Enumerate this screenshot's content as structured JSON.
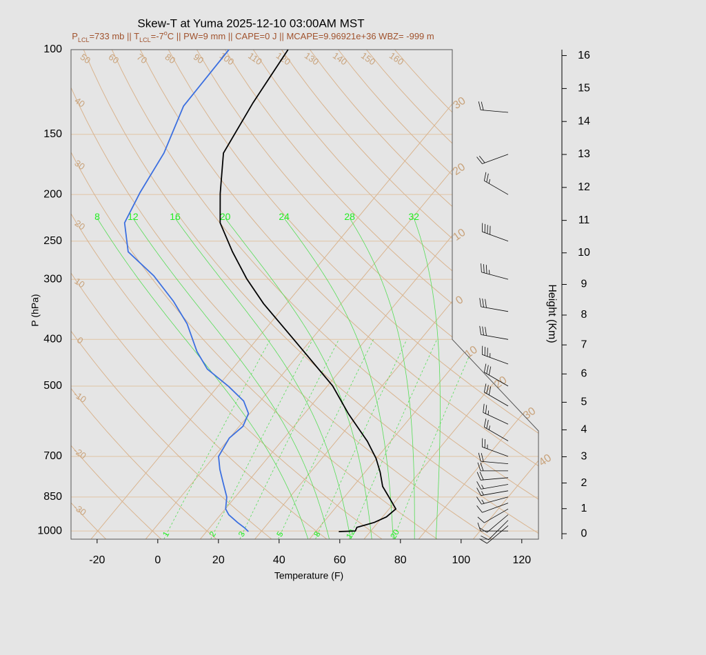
{
  "chart_data": {
    "type": "skewt",
    "title": "Skew-T at Yuma 2025-12-10 03:00AM MST",
    "subtitle": [
      {
        "text": "P"
      },
      {
        "text": "LCL",
        "shift": "sub"
      },
      {
        "text": "=733 mb || T"
      },
      {
        "text": "LCL",
        "shift": "sub"
      },
      {
        "text": "=-7"
      },
      {
        "text": "o",
        "shift": "super"
      },
      {
        "text": "C || PW=9 mm || CAPE=0 J || MCAPE=9.96921e+36 WBZ= -999 m"
      }
    ],
    "xlabel": "Temperature (F)",
    "ylabel": "P (hPa)",
    "y2label": "Height (Km)",
    "xlim": [
      -28.6,
      125.5
    ],
    "xticks": [
      -20,
      0,
      20,
      40,
      60,
      80,
      100,
      120
    ],
    "ylim": [
      1040,
      100
    ],
    "yticks": [
      100,
      150,
      200,
      250,
      300,
      400,
      500,
      700,
      850,
      1000
    ],
    "log_y": true,
    "y2ticks": [
      0,
      1,
      2,
      3,
      4,
      5,
      6,
      7,
      8,
      9,
      10,
      11,
      12,
      13,
      14,
      15,
      16
    ],
    "grid": true,
    "series": [
      {
        "color": "#000000",
        "pressure": [
          1003,
          1000,
          983,
          960,
          935,
          900,
          867,
          808,
          755,
          707,
          651,
          570,
          499,
          398,
          337,
          299,
          263,
          229,
          199,
          164,
          129,
          100
        ],
        "values": [
          57.6,
          62.9,
          62.4,
          66.8,
          69.3,
          70.2,
          66.6,
          59.7,
          55.0,
          49.9,
          42.3,
          28.4,
          15.6,
          -10.4,
          -29.6,
          -42,
          -54,
          -66,
          -74,
          -84,
          -88,
          -91
        ]
      },
      {
        "color": "#3b6fe0",
        "pressure": [
          1003,
          985,
          960,
          925,
          900,
          850,
          796,
          745,
          700,
          641,
          606,
          570,
          537,
          501,
          461,
          424,
          371,
          333,
          295,
          263,
          229,
          198,
          164,
          131,
          100
        ],
        "values": [
          27.8,
          25.5,
          21.7,
          16.7,
          14.1,
          11.2,
          6.3,
          1.4,
          -2.6,
          -4.1,
          -2.8,
          -4.5,
          -9.5,
          -18.4,
          -30.2,
          -38.4,
          -49.3,
          -60,
          -73.4,
          -88.4,
          -97.5,
          -100.7,
          -103.6,
          -110,
          -110.5
        ]
      }
    ],
    "winds": {
      "pressure": [
        1000,
        975,
        950,
        925,
        900,
        875,
        850,
        825,
        800,
        775,
        750,
        725,
        700,
        650,
        600,
        550,
        500,
        450,
        400,
        350,
        300,
        250,
        200,
        165,
        135
      ],
      "direction": [
        270,
        230,
        225,
        230,
        240,
        250,
        255,
        260,
        260,
        265,
        270,
        275,
        290,
        300,
        295,
        300,
        300,
        290,
        280,
        280,
        285,
        290,
        300,
        250,
        275
      ],
      "speed": [
        10,
        10,
        10,
        10,
        10,
        10,
        15,
        15,
        15,
        20,
        20,
        20,
        25,
        25,
        25,
        30,
        30,
        35,
        30,
        30,
        35,
        40,
        25,
        20,
        20
      ]
    },
    "isotherms_c": [
      {
        "value": -30,
        "label": "30"
      },
      {
        "value": -20,
        "label": "20"
      },
      {
        "value": -10,
        "label": "10"
      },
      0,
      10,
      20,
      30,
      40
    ],
    "dry_adiabats_c": [
      -30,
      -20,
      -10,
      0,
      10,
      20,
      30,
      40,
      50,
      60,
      70,
      80,
      90,
      100,
      110,
      120,
      130,
      140,
      150,
      160
    ],
    "moist_adiabats_c": [
      8,
      12,
      16,
      20,
      24,
      28,
      32
    ],
    "mixing_ratios": [
      1,
      2,
      3,
      5,
      8,
      12,
      20
    ]
  }
}
